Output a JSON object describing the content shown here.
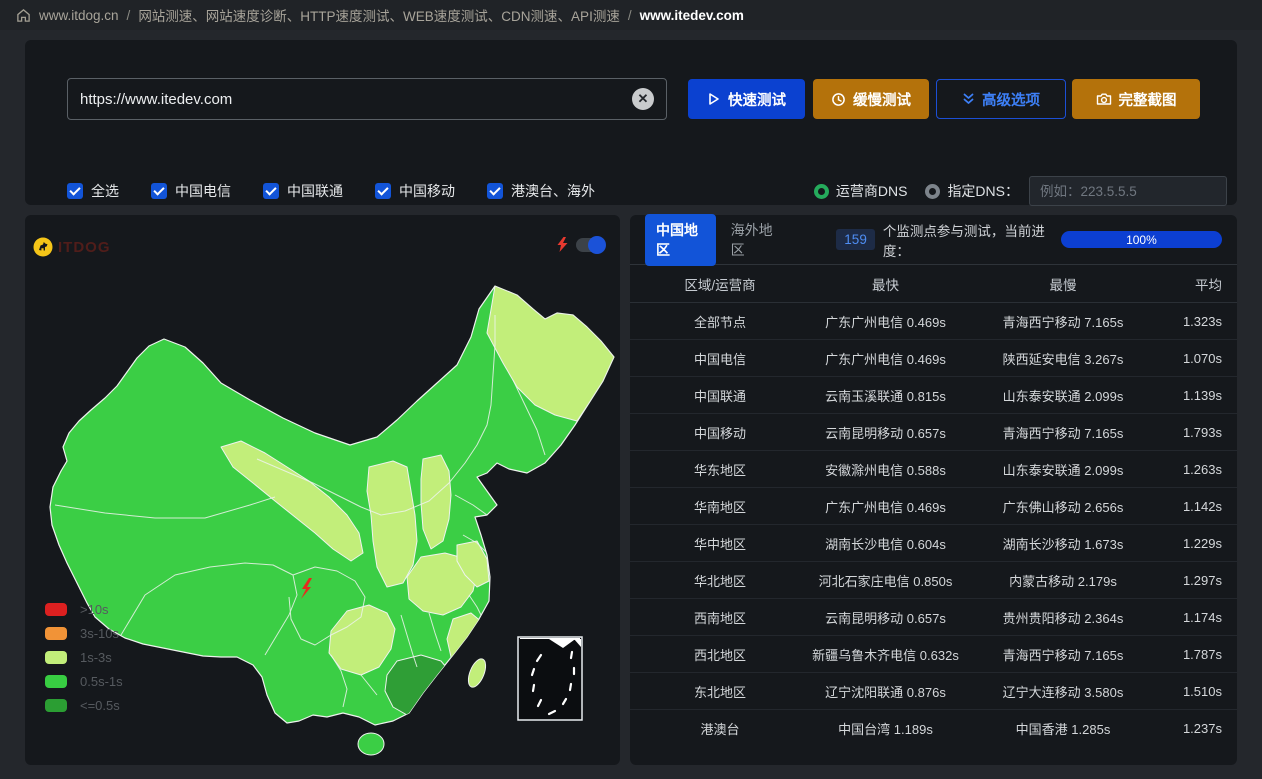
{
  "breadcrumb": {
    "site": "www.itdog.cn",
    "separator": "/",
    "section": "网站测速、网站速度诊断、HTTP速度测试、WEB速度测试、CDN测速、API测速",
    "current": "www.itedev.com"
  },
  "test_form": {
    "url_value": "https://www.itedev.com",
    "buttons": {
      "fast": "快速测试",
      "slow": "缓慢测试",
      "advanced": "高级选项",
      "screenshot": "完整截图"
    },
    "checkboxes": [
      {
        "label": "全选",
        "checked": true
      },
      {
        "label": "中国电信",
        "checked": true
      },
      {
        "label": "中国联通",
        "checked": true
      },
      {
        "label": "中国移动",
        "checked": true
      },
      {
        "label": "港澳台、海外",
        "checked": true
      }
    ],
    "dns": {
      "carrier_label": "运营商DNS",
      "carrier_selected": true,
      "custom_label": "指定DNS：",
      "custom_selected": false,
      "placeholder": "例如：223.5.5.5"
    }
  },
  "map": {
    "watermark": "ITDOG",
    "toggle_on": true,
    "base_color": "#3bce45",
    "legend": [
      {
        "label": ">10s",
        "color": "#dc2020"
      },
      {
        "label": "3s-10s",
        "color": "#f19337"
      },
      {
        "label": "1s-3s",
        "color": "#c2ee7a"
      },
      {
        "label": "0.5s-1s",
        "color": "#38cd42"
      },
      {
        "label": "<=0.5s",
        "color": "#2b9e33"
      }
    ]
  },
  "results": {
    "tabs": [
      {
        "label": "中国地区",
        "active": true
      },
      {
        "label": "海外地区",
        "active": false
      }
    ],
    "monitor_count": "159",
    "monitor_text": "个监测点参与测试，当前进度：",
    "progress": "100%",
    "columns": [
      "区域/运营商",
      "最快",
      "最慢",
      "平均"
    ],
    "rows": [
      [
        "全部节点",
        "广东广州电信 0.469s",
        "青海西宁移动 7.165s",
        "1.323s"
      ],
      [
        "中国电信",
        "广东广州电信 0.469s",
        "陕西延安电信 3.267s",
        "1.070s"
      ],
      [
        "中国联通",
        "云南玉溪联通 0.815s",
        "山东泰安联通 2.099s",
        "1.139s"
      ],
      [
        "中国移动",
        "云南昆明移动 0.657s",
        "青海西宁移动 7.165s",
        "1.793s"
      ],
      [
        "华东地区",
        "安徽滁州电信 0.588s",
        "山东泰安联通 2.099s",
        "1.263s"
      ],
      [
        "华南地区",
        "广东广州电信 0.469s",
        "广东佛山移动 2.656s",
        "1.142s"
      ],
      [
        "华中地区",
        "湖南长沙电信 0.604s",
        "湖南长沙移动 1.673s",
        "1.229s"
      ],
      [
        "华北地区",
        "河北石家庄电信 0.850s",
        "内蒙古移动 2.179s",
        "1.297s"
      ],
      [
        "西南地区",
        "云南昆明移动 0.657s",
        "贵州贵阳移动 2.364s",
        "1.174s"
      ],
      [
        "西北地区",
        "新疆乌鲁木齐电信 0.632s",
        "青海西宁移动 7.165s",
        "1.787s"
      ],
      [
        "东北地区",
        "辽宁沈阳联通 0.876s",
        "辽宁大连移动 3.580s",
        "1.510s"
      ],
      [
        "港澳台",
        "中国台湾 1.189s",
        "中国香港 1.285s",
        "1.237s"
      ]
    ]
  }
}
